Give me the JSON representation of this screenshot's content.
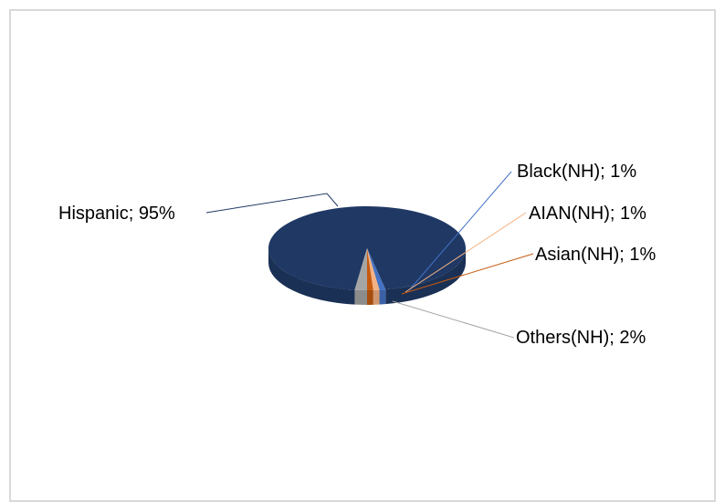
{
  "chart_data": {
    "type": "pie",
    "style": "3d",
    "title": "",
    "legend": "none",
    "slices": [
      {
        "name": "Hispanic",
        "value": 95,
        "label": "Hispanic; 95%",
        "color": "#1f3864"
      },
      {
        "name": "Black(NH)",
        "value": 1,
        "label": "Black(NH); 1%",
        "color": "#4472c4"
      },
      {
        "name": "AIAN(NH)",
        "value": 1,
        "label": "AIAN(NH); 1%",
        "color": "#f4b183"
      },
      {
        "name": "Asian(NH)",
        "value": 1,
        "label": "Asian(NH); 1%",
        "color": "#c55a11"
      },
      {
        "name": "Others(NH)",
        "value": 2,
        "label": "Others(NH); 2%",
        "color": "#a5a5a5"
      }
    ]
  }
}
